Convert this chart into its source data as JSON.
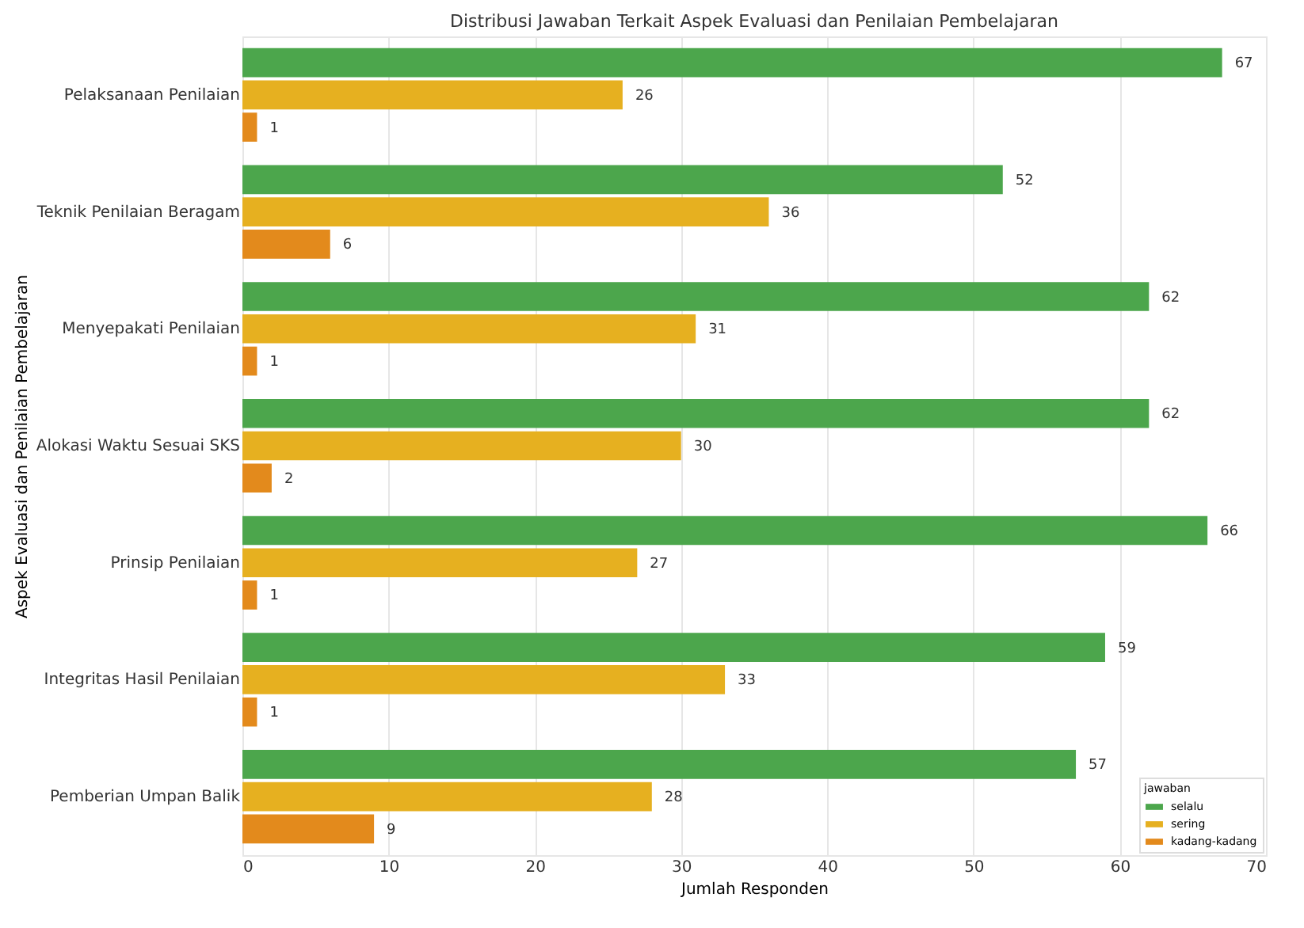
{
  "chart_data": {
    "type": "bar",
    "orientation": "horizontal",
    "title": "Distribusi Jawaban Terkait Aspek Evaluasi dan Penilaian Pembelajaran",
    "xlabel": "Jumlah Responden",
    "ylabel": "Aspek Evaluasi dan Penilaian Pembelajaran",
    "legend_title": "jawaban",
    "categories": [
      "Pelaksanaan Penilaian",
      "Teknik Penilaian Beragam",
      "Menyepakati Penilaian",
      "Alokasi Waktu Sesuai SKS",
      "Prinsip Penilaian",
      "Integritas Hasil Penilaian",
      "Pemberian Umpan Balik"
    ],
    "series": [
      {
        "name": "selalu",
        "color": "#4ca64c",
        "values": [
          67,
          52,
          62,
          62,
          66,
          59,
          57
        ]
      },
      {
        "name": "sering",
        "color": "#e6b020",
        "values": [
          26,
          36,
          31,
          30,
          27,
          33,
          28
        ]
      },
      {
        "name": "kadang-kadang",
        "color": "#e38a1c",
        "values": [
          1,
          6,
          1,
          2,
          1,
          1,
          9
        ]
      }
    ],
    "xlim": [
      0,
      70
    ],
    "xticks": [
      0,
      10,
      20,
      30,
      40,
      50,
      60,
      70
    ],
    "grid": "x",
    "legend": "bottom right",
    "data_labels": true
  }
}
